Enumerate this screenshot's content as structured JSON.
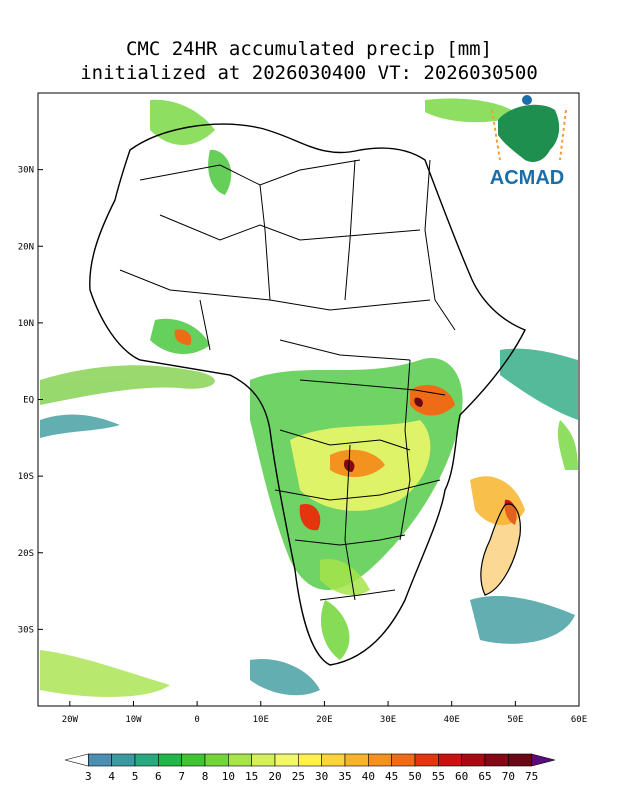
{
  "title": {
    "line1": "CMC 24HR accumulated precip [mm]",
    "line2": "initialized at 2026030400 VT: 2026030500"
  },
  "logo": {
    "text": "ACMAD",
    "icon": "africa-logo-icon"
  },
  "map": {
    "lon_range": [
      -25,
      60
    ],
    "lat_range": [
      -40,
      40
    ],
    "lat_labels": [
      "30N",
      "20N",
      "10N",
      "EQ",
      "10S",
      "20S",
      "30S"
    ],
    "lat_values": [
      30,
      20,
      10,
      0,
      -10,
      -20,
      -30
    ],
    "lon_labels": [
      "20W",
      "10W",
      "0",
      "10E",
      "20E",
      "30E",
      "40E",
      "50E",
      "60E"
    ],
    "lon_values": [
      -20,
      -10,
      0,
      10,
      20,
      30,
      40,
      50,
      60
    ]
  },
  "colorbar": {
    "labels": [
      "3",
      "4",
      "5",
      "6",
      "7",
      "8",
      "10",
      "15",
      "20",
      "25",
      "30",
      "35",
      "40",
      "45",
      "50",
      "55",
      "60",
      "65",
      "70",
      "75"
    ],
    "colors": [
      "#ffffff",
      "#4b8fb3",
      "#3b9a9d",
      "#2aa980",
      "#22b54a",
      "#3fc432",
      "#72d63a",
      "#a6e44a",
      "#d4ef5a",
      "#f3f86a",
      "#fff04a",
      "#fbd33a",
      "#f7b42b",
      "#f3921e",
      "#ef6b15",
      "#e5350f",
      "#cc1111",
      "#a80a13",
      "#850614",
      "#6b0815",
      "#5a0d7a"
    ]
  }
}
